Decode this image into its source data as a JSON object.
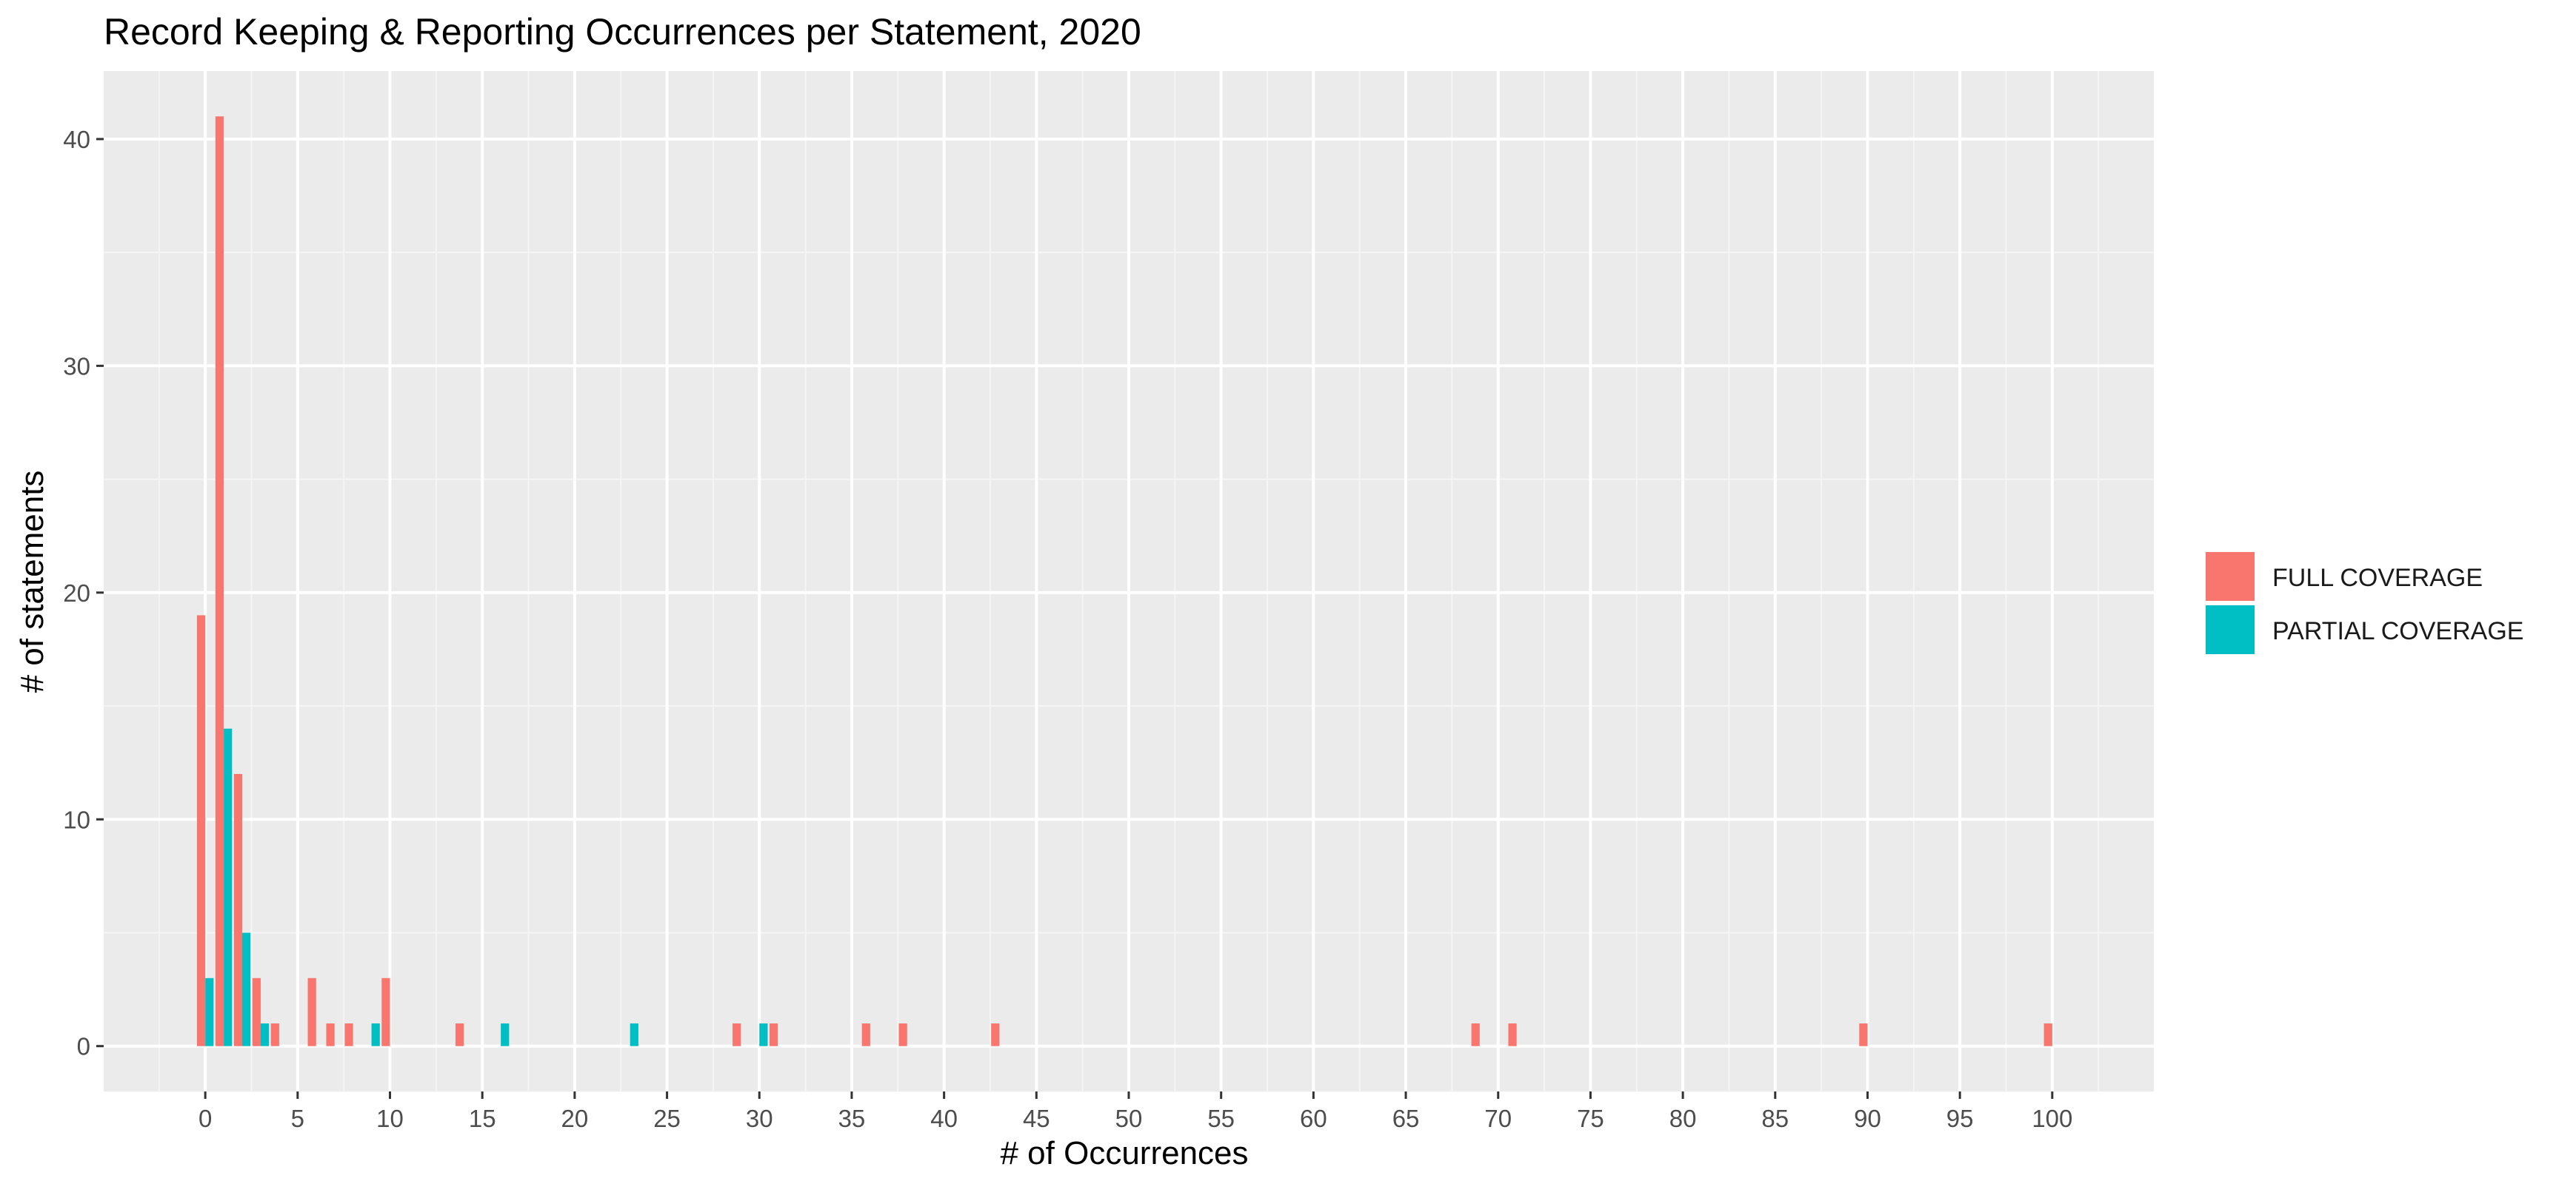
{
  "chart_data": {
    "type": "bar",
    "title": "Record Keeping & Reporting Occurrences per Statement, 2020",
    "xlabel": "# of Occurrences",
    "ylabel": "# of statements",
    "xlim": [
      -5.5,
      105.5
    ],
    "ylim": [
      -2,
      43
    ],
    "x_ticks": [
      0,
      5,
      10,
      15,
      20,
      25,
      30,
      35,
      40,
      45,
      50,
      55,
      60,
      65,
      70,
      75,
      80,
      85,
      90,
      95,
      100
    ],
    "y_ticks": [
      0,
      10,
      20,
      30,
      40
    ],
    "grid": true,
    "legend_position": "right",
    "series": [
      {
        "name": "FULL COVERAGE",
        "color": "#F8766D",
        "points": [
          {
            "x": 0,
            "y": 19
          },
          {
            "x": 1,
            "y": 41
          },
          {
            "x": 2,
            "y": 12
          },
          {
            "x": 3,
            "y": 3
          },
          {
            "x": 4,
            "y": 1
          },
          {
            "x": 6,
            "y": 3
          },
          {
            "x": 7,
            "y": 1
          },
          {
            "x": 8,
            "y": 1
          },
          {
            "x": 10,
            "y": 3
          },
          {
            "x": 14,
            "y": 1
          },
          {
            "x": 29,
            "y": 1
          },
          {
            "x": 31,
            "y": 1
          },
          {
            "x": 36,
            "y": 1
          },
          {
            "x": 38,
            "y": 1
          },
          {
            "x": 43,
            "y": 1
          },
          {
            "x": 69,
            "y": 1
          },
          {
            "x": 71,
            "y": 1
          },
          {
            "x": 90,
            "y": 1
          },
          {
            "x": 100,
            "y": 1
          }
        ]
      },
      {
        "name": "PARTIAL COVERAGE",
        "color": "#00BFC4",
        "points": [
          {
            "x": 0,
            "y": 3
          },
          {
            "x": 1,
            "y": 14
          },
          {
            "x": 2,
            "y": 5
          },
          {
            "x": 3,
            "y": 1
          },
          {
            "x": 9,
            "y": 1
          },
          {
            "x": 16,
            "y": 1
          },
          {
            "x": 23,
            "y": 1
          },
          {
            "x": 30,
            "y": 1
          }
        ]
      }
    ]
  }
}
